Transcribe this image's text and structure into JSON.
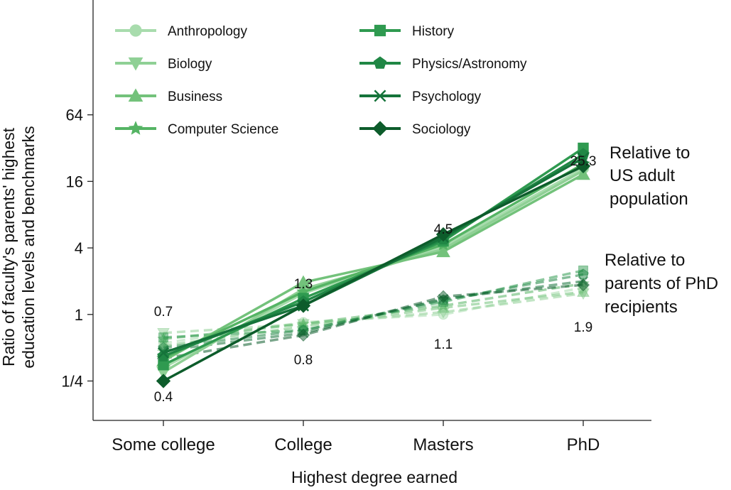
{
  "chart_data": {
    "type": "line",
    "x_axis": {
      "label": "Highest degree earned",
      "categories": [
        "Some college",
        "College",
        "Masters",
        "PhD"
      ]
    },
    "y_axis": {
      "label_line1": "Ratio of faculty's parents' highest",
      "label_line2": "education levels and benchmarks",
      "scale": "log2",
      "ticks": [
        0.25,
        1,
        4,
        16,
        64
      ],
      "tick_labels": [
        "1/4",
        "1",
        "4",
        "16",
        "64"
      ],
      "ylim": [
        0.11,
        700
      ]
    },
    "legend": {
      "placement": "top-left",
      "columns": 2
    },
    "group_labels": {
      "us_population": [
        "Relative to",
        "US adult",
        "population"
      ],
      "phd_parents": [
        "Relative to",
        "parents of PhD",
        "recipients"
      ]
    },
    "value_labels": {
      "us_population_top": [
        {
          "category": "Some college",
          "value": "0.7"
        },
        {
          "category": "College",
          "value": "1.3"
        },
        {
          "category": "Masters",
          "value": "4.5"
        },
        {
          "category": "PhD",
          "value": "25.3"
        }
      ],
      "bottom": [
        {
          "category": "Some college",
          "value": "0.4"
        },
        {
          "category": "College",
          "value": "0.8"
        },
        {
          "category": "Masters",
          "value": "1.1"
        },
        {
          "category": "PhD",
          "value": "1.9"
        }
      ]
    },
    "series": [
      {
        "name": "Anthropology",
        "marker": "circle",
        "color": "#a8dcad",
        "us_population": [
          0.33,
          1.55,
          4.1,
          21.0
        ],
        "phd_parents": [
          0.55,
          0.85,
          1.0,
          1.75
        ]
      },
      {
        "name": "Biology",
        "marker": "triangle-down",
        "color": "#8fd095",
        "us_population": [
          0.3,
          1.7,
          3.9,
          20.0
        ],
        "phd_parents": [
          0.68,
          0.82,
          1.05,
          1.55
        ]
      },
      {
        "name": "Business",
        "marker": "triangle-up",
        "color": "#73c27b",
        "us_population": [
          0.38,
          1.95,
          3.7,
          18.5
        ],
        "phd_parents": [
          0.52,
          0.78,
          1.15,
          1.6
        ]
      },
      {
        "name": "Computer Science",
        "marker": "star",
        "color": "#55b464",
        "us_population": [
          0.4,
          1.6,
          4.3,
          23.0
        ],
        "phd_parents": [
          0.6,
          0.82,
          1.2,
          1.9
        ]
      },
      {
        "name": "History",
        "marker": "square",
        "color": "#2f9a50",
        "us_population": [
          0.35,
          1.4,
          4.6,
          32.0
        ],
        "phd_parents": [
          0.62,
          0.72,
          1.3,
          2.5
        ]
      },
      {
        "name": "Physics/Astronomy",
        "marker": "pentagon",
        "color": "#208745",
        "us_population": [
          0.42,
          1.3,
          4.8,
          28.0
        ],
        "phd_parents": [
          0.5,
          0.72,
          1.35,
          2.3
        ]
      },
      {
        "name": "Psychology",
        "marker": "x",
        "color": "#15733a",
        "us_population": [
          0.45,
          1.2,
          5.0,
          26.0
        ],
        "phd_parents": [
          0.47,
          0.68,
          1.38,
          2.0
        ]
      },
      {
        "name": "Sociology",
        "marker": "diamond",
        "color": "#0d5c2b",
        "us_population": [
          0.25,
          1.2,
          5.3,
          22.0
        ],
        "phd_parents": [
          0.4,
          0.65,
          1.45,
          1.85
        ]
      }
    ]
  }
}
